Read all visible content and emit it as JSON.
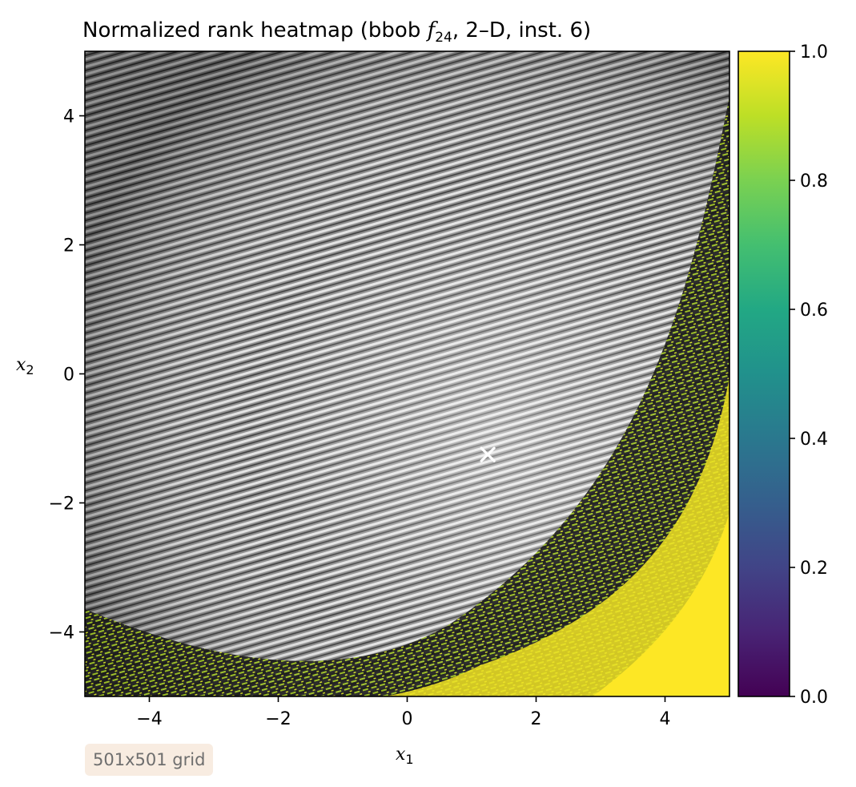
{
  "chart_data": {
    "type": "heatmap",
    "title_main": "Normalized rank heatmap (bbob ",
    "title_func": "f",
    "title_func_sub": "24",
    "title_tail": ", 2–D, inst. 6)",
    "xlabel": "x",
    "xlabel_sub": "1",
    "ylabel": "x",
    "ylabel_sub": "2",
    "xlim": [
      -5,
      5
    ],
    "ylim": [
      -5,
      5
    ],
    "x_ticks": [
      -4,
      -2,
      0,
      2,
      4
    ],
    "x_tick_labels": [
      "−4",
      "−2",
      "0",
      "2",
      "4"
    ],
    "y_ticks": [
      -4,
      -2,
      0,
      2,
      4
    ],
    "y_tick_labels": [
      "−4",
      "−2",
      "0",
      "2",
      "4"
    ],
    "colorbar": {
      "colormap": "viridis",
      "range": [
        0.0,
        1.0
      ],
      "ticks": [
        0.0,
        0.2,
        0.4,
        0.6,
        0.8,
        1.0
      ],
      "tick_labels": [
        "0.0",
        "0.2",
        "0.4",
        "0.6",
        "0.8",
        "1.0"
      ]
    },
    "optimum_marker": {
      "x": 1.25,
      "y": -1.25,
      "symbol": "x",
      "color": "#ffffff"
    },
    "grid": false,
    "annotation": "501x501 grid"
  }
}
